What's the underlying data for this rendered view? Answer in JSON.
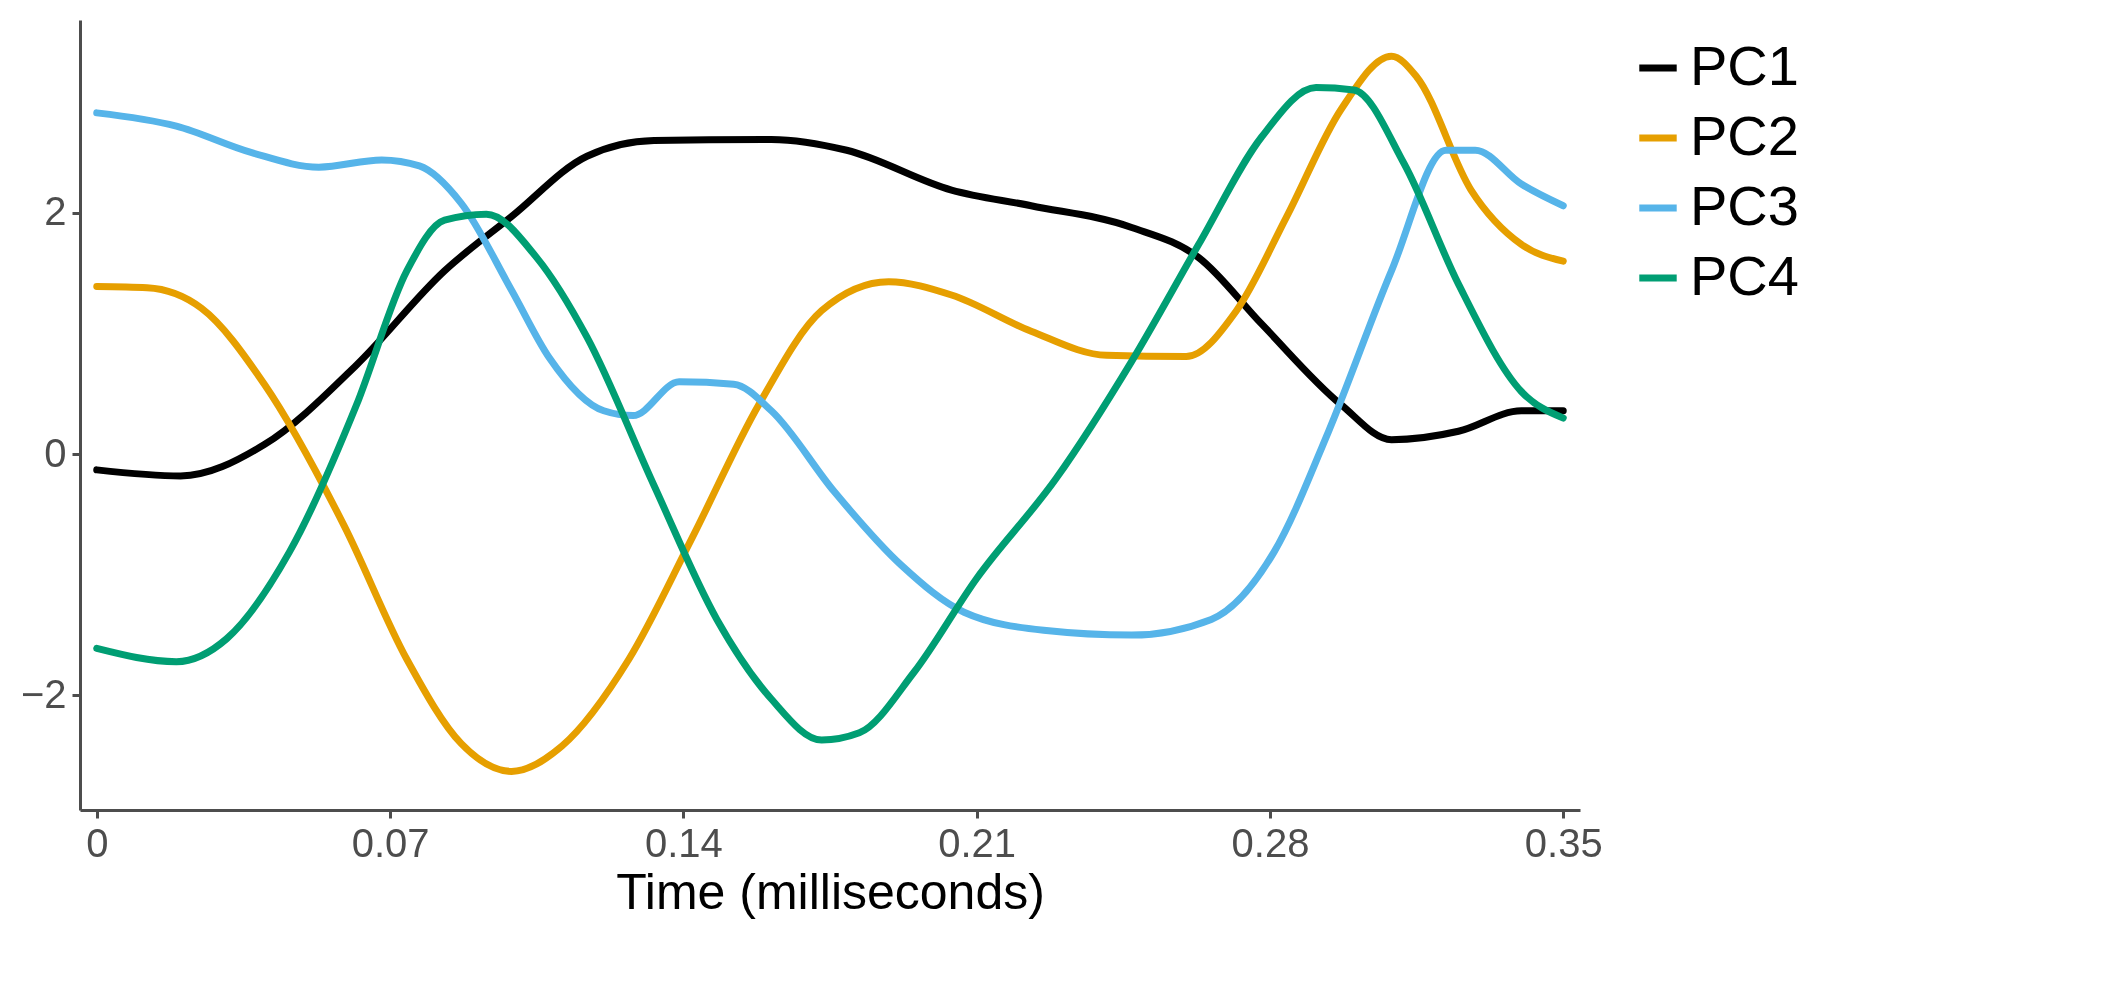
{
  "chart_data": {
    "type": "line",
    "xlabel": "Time (milliseconds)",
    "xlim": [
      -0.004,
      0.354
    ],
    "ylim": [
      -2.95,
      3.6
    ],
    "xticks": [
      0,
      0.07,
      0.14,
      0.21,
      0.28,
      0.35
    ],
    "yticks": [
      {
        "value": -2,
        "label": "−2"
      },
      0,
      2
    ],
    "grid": false,
    "legend": "right",
    "marker": "none",
    "line_style": "solid",
    "series": [
      {
        "name": "PC1",
        "color": "#000000",
        "x": [
          0,
          0.02,
          0.04,
          0.062,
          0.083,
          0.099,
          0.117,
          0.133,
          0.161,
          0.179,
          0.204,
          0.223,
          0.247,
          0.263,
          0.278,
          0.297,
          0.309,
          0.325,
          0.34,
          0.35
        ],
        "values": [
          -0.13,
          -0.18,
          0.08,
          0.74,
          1.52,
          1.97,
          2.47,
          2.6,
          2.61,
          2.52,
          2.19,
          2.06,
          1.88,
          1.63,
          1.08,
          0.41,
          0.12,
          0.19,
          0.36,
          0.36
        ]
      },
      {
        "name": "PC2",
        "color": "#e69f00",
        "x": [
          0,
          0.012,
          0.025,
          0.04,
          0.059,
          0.074,
          0.087,
          0.099,
          0.111,
          0.127,
          0.142,
          0.158,
          0.173,
          0.189,
          0.204,
          0.223,
          0.241,
          0.26,
          0.272,
          0.284,
          0.297,
          0.309,
          0.315,
          0.328,
          0.34,
          0.35
        ],
        "values": [
          1.39,
          1.38,
          1.21,
          0.58,
          -0.59,
          -1.7,
          -2.4,
          -2.63,
          -2.42,
          -1.7,
          -0.7,
          0.41,
          1.19,
          1.43,
          1.32,
          1.02,
          0.82,
          0.81,
          1.19,
          1.97,
          2.86,
          3.3,
          3.13,
          2.19,
          1.74,
          1.6
        ]
      },
      {
        "name": "PC3",
        "color": "#56b4e9",
        "x": [
          0,
          0.019,
          0.037,
          0.053,
          0.068,
          0.077,
          0.087,
          0.099,
          0.108,
          0.121,
          0.128,
          0.139,
          0.152,
          0.161,
          0.176,
          0.192,
          0.207,
          0.226,
          0.247,
          0.266,
          0.281,
          0.294,
          0.309,
          0.322,
          0.329,
          0.34,
          0.35
        ],
        "values": [
          2.83,
          2.72,
          2.5,
          2.38,
          2.44,
          2.39,
          2.08,
          1.36,
          0.8,
          0.36,
          0.32,
          0.6,
          0.58,
          0.36,
          -0.31,
          -0.92,
          -1.31,
          -1.46,
          -1.5,
          -1.37,
          -0.81,
          0.19,
          1.52,
          2.52,
          2.52,
          2.24,
          2.06
        ]
      },
      {
        "name": "PC4",
        "color": "#009e73",
        "x": [
          0,
          0.019,
          0.031,
          0.046,
          0.062,
          0.074,
          0.083,
          0.093,
          0.105,
          0.117,
          0.133,
          0.148,
          0.161,
          0.173,
          0.182,
          0.195,
          0.21,
          0.229,
          0.247,
          0.263,
          0.278,
          0.291,
          0.3,
          0.312,
          0.325,
          0.34,
          0.35
        ],
        "values": [
          -1.61,
          -1.72,
          -1.53,
          -0.81,
          0.41,
          1.52,
          1.94,
          1.99,
          1.63,
          0.97,
          -0.26,
          -1.37,
          -2.03,
          -2.37,
          -2.31,
          -1.81,
          -1.03,
          -0.2,
          0.77,
          1.74,
          2.63,
          3.04,
          3.02,
          2.41,
          1.41,
          0.52,
          0.3
        ]
      }
    ]
  }
}
